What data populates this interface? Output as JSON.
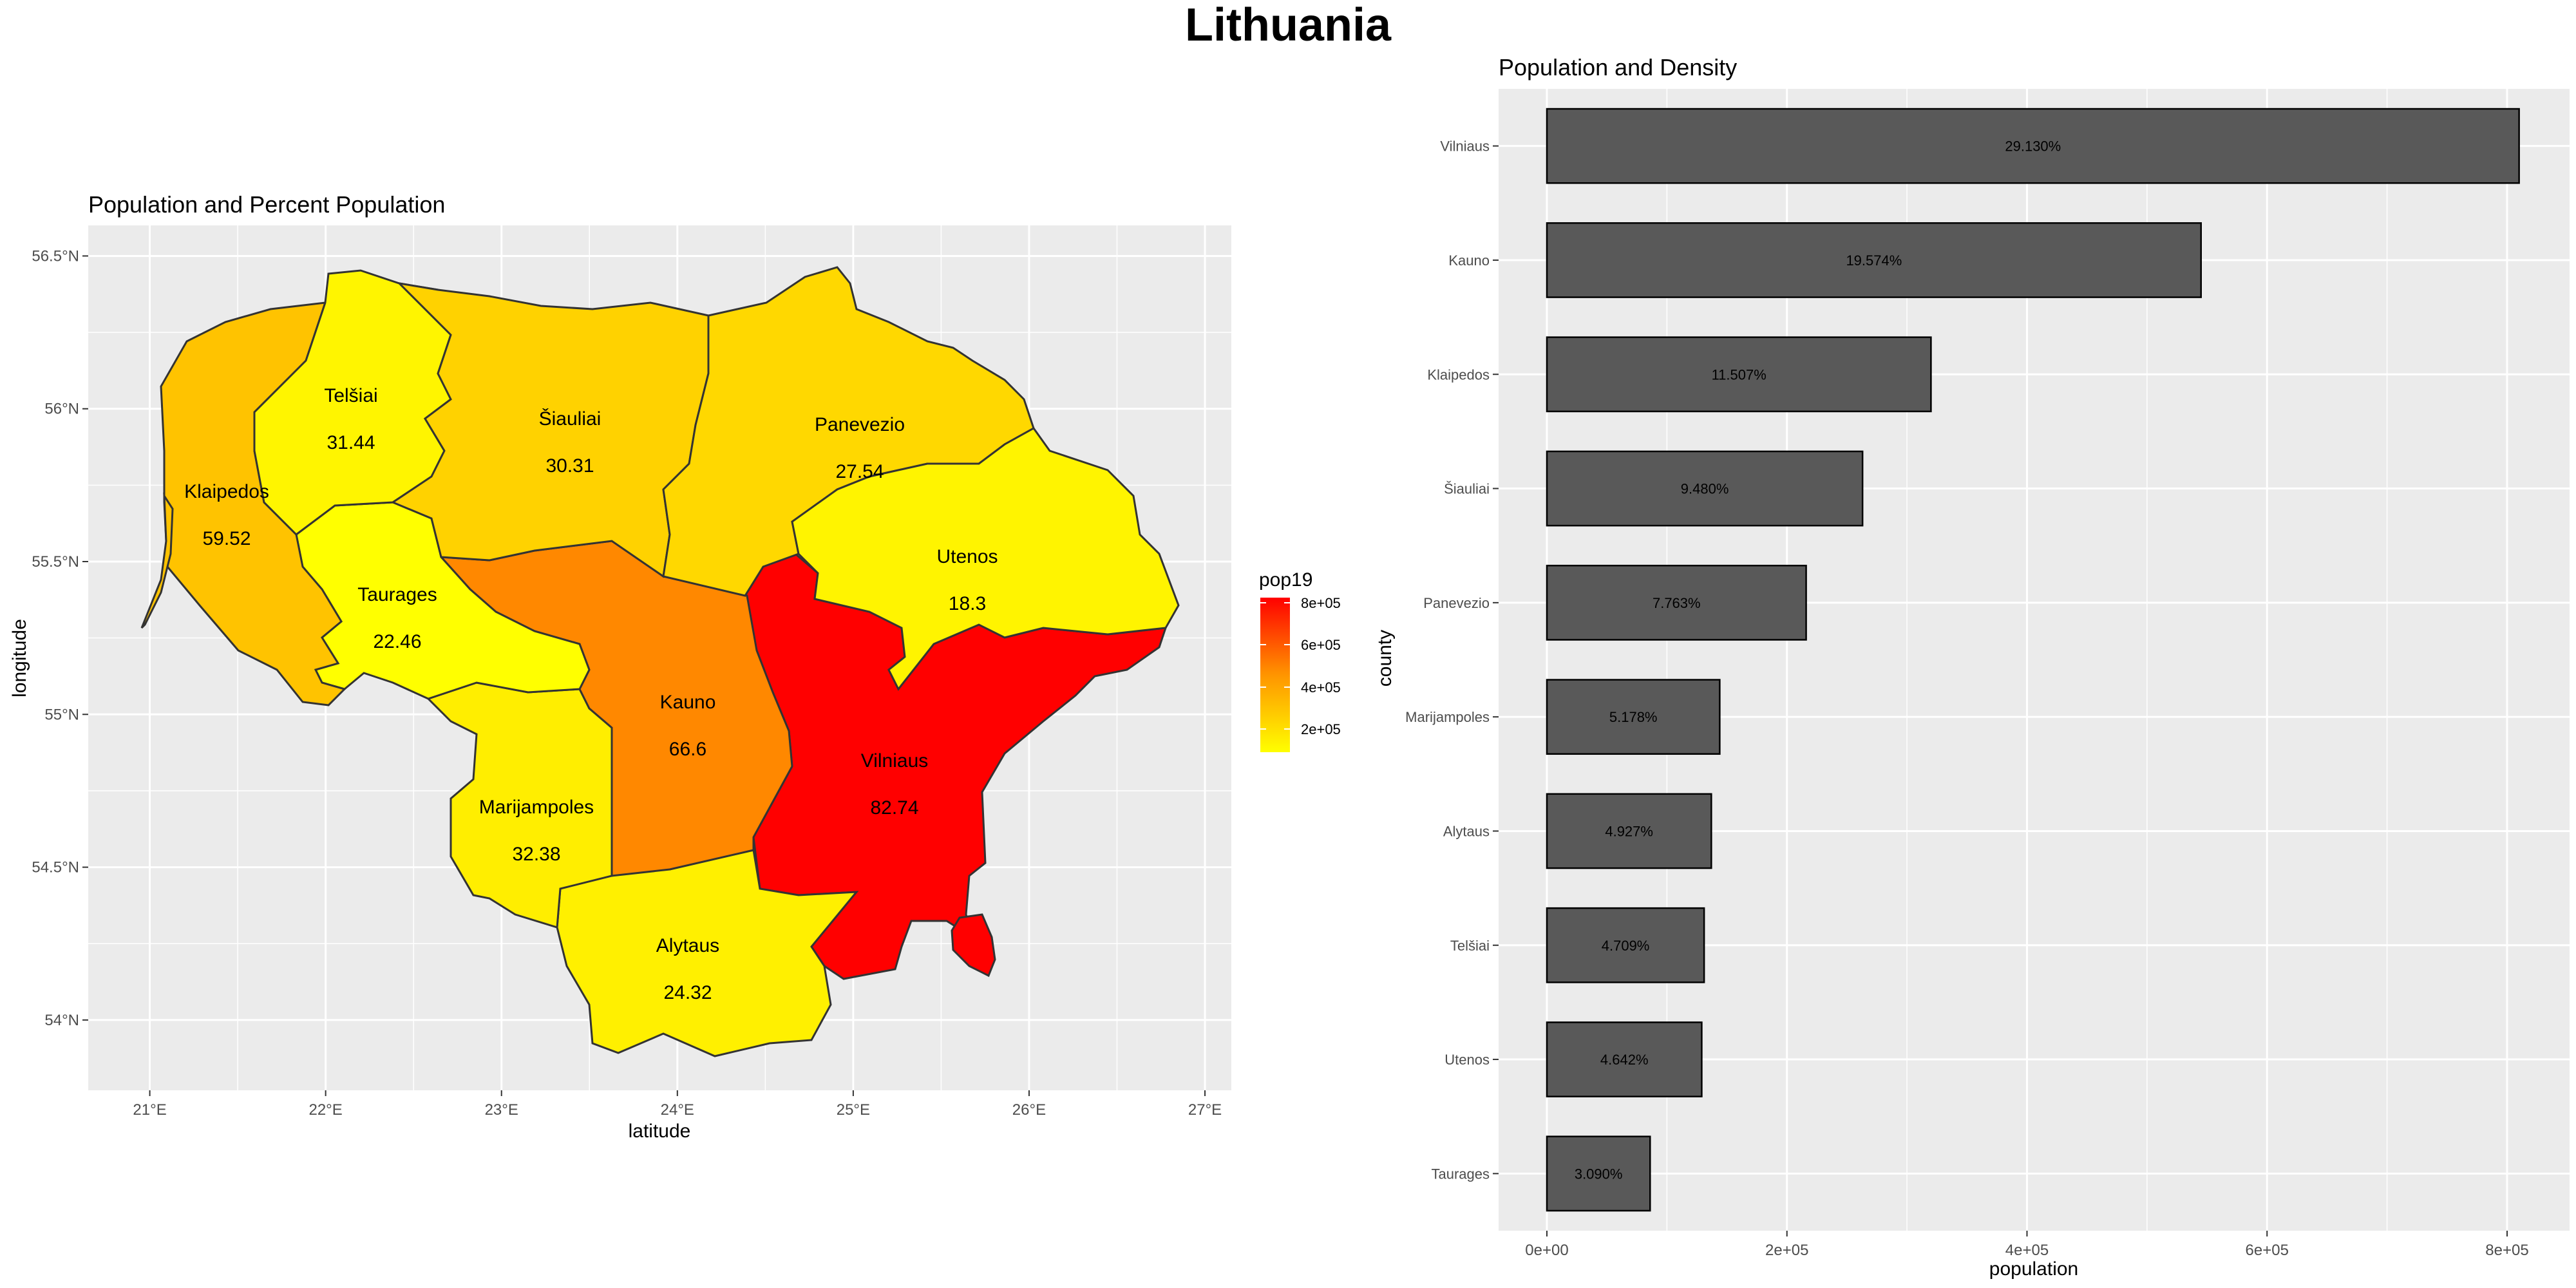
{
  "page_title": "Lithuania",
  "chart_data": [
    {
      "type": "choropleth-map",
      "title": "Population and Percent Population",
      "xlabel": "latitude",
      "ylabel": "longitude",
      "x_ticks": [
        "21°E",
        "22°E",
        "23°E",
        "24°E",
        "25°E",
        "26°E",
        "27°E"
      ],
      "y_ticks": [
        "54°N",
        "54.5°N",
        "55°N",
        "55.5°N",
        "56°N",
        "56.5°N"
      ],
      "xlim": [
        20.65,
        27.15
      ],
      "ylim": [
        53.77,
        56.6
      ],
      "legend": {
        "title": "pop19",
        "labels": [
          "8e+05",
          "6e+05",
          "4e+05",
          "2e+05"
        ],
        "low_color": "#FFFF00",
        "high_color": "#FF0000"
      },
      "regions": [
        {
          "name": "Klaipedos",
          "value": "59.52",
          "color": "#FFC300"
        },
        {
          "name": "Telšiai",
          "value": "31.44",
          "color": "#FFF500"
        },
        {
          "name": "Šiauliai",
          "value": "30.31",
          "color": "#FFD200"
        },
        {
          "name": "Panevezio",
          "value": "27.54",
          "color": "#FFD800"
        },
        {
          "name": "Utenos",
          "value": "18.3",
          "color": "#FFF400"
        },
        {
          "name": "Taurages",
          "value": "22.46",
          "color": "#FFFF00"
        },
        {
          "name": "Kauno",
          "value": "66.6",
          "color": "#FF8800"
        },
        {
          "name": "Vilniaus",
          "value": "82.74",
          "color": "#FF0000"
        },
        {
          "name": "Marijampoles",
          "value": "32.38",
          "color": "#FFEE00"
        },
        {
          "name": "Alytaus",
          "value": "24.32",
          "color": "#FFF000"
        }
      ],
      "grid": true,
      "legend_position": "right"
    },
    {
      "type": "bar",
      "orientation": "horizontal",
      "title": "Population and Density",
      "xlabel": "population",
      "ylabel": "county",
      "xlim": [
        0,
        850000
      ],
      "x_ticks": [
        "0e+00",
        "2e+05",
        "4e+05",
        "6e+05",
        "8e+05"
      ],
      "categories": [
        "Vilniaus",
        "Kauno",
        "Klaipedos",
        "Šiauliai",
        "Panevezio",
        "Marijampoles",
        "Alytaus",
        "Telšiai",
        "Utenos",
        "Taurages"
      ],
      "values": [
        810000,
        545000,
        320000,
        263000,
        216000,
        144000,
        137000,
        131000,
        129000,
        86000
      ],
      "labels": [
        "29.130%",
        "19.574%",
        "11.507%",
        "9.480%",
        "7.763%",
        "5.178%",
        "4.927%",
        "4.709%",
        "4.642%",
        "3.090%"
      ],
      "bar_color": "#595959",
      "grid": true
    }
  ]
}
